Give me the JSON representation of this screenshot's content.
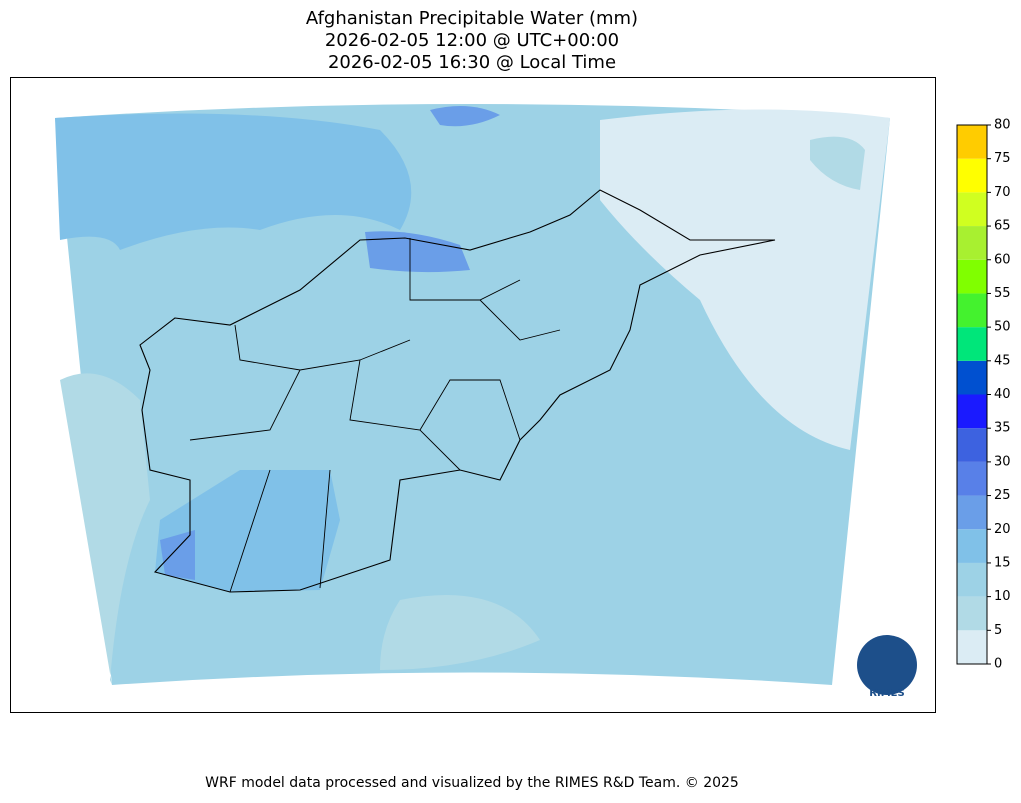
{
  "header": {
    "title": "Afghanistan Precipitable Water (mm)",
    "utc_time": "2026-02-05 12:00 @ UTC+00:00",
    "local_time": "2026-02-05 16:30 @ Local Time"
  },
  "colorbar": {
    "ticks": [
      0,
      5,
      10,
      15,
      20,
      25,
      30,
      35,
      40,
      45,
      50,
      55,
      60,
      65,
      70,
      75,
      80
    ],
    "colors": [
      "#dbecf4",
      "#b1dae6",
      "#9dd2e6",
      "#80c1e8",
      "#6a9ee8",
      "#5880e8",
      "#3d62e0",
      "#1a1aff",
      "#0050d0",
      "#00e67a",
      "#44f22e",
      "#80ff00",
      "#a8f030",
      "#d0ff20",
      "#ffff00",
      "#ffcc00"
    ]
  },
  "logo": {
    "label": "RIMES"
  },
  "footer": {
    "credit": "WRF model data processed and visualized by the RIMES R&D Team. © 2025"
  }
}
